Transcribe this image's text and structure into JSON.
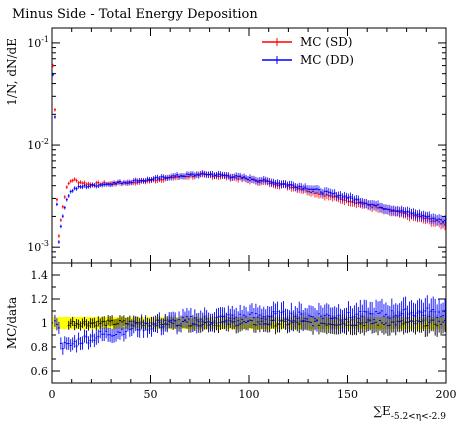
{
  "chart_data": [
    {
      "type": "line",
      "panel": "main",
      "title": "Minus Side - Total Energy Deposition",
      "ylabel": "1/N, dN/dE",
      "yscale": "log",
      "xlim": [
        0,
        200
      ],
      "ylim": [
        0.0007,
        0.14
      ],
      "ytick_labels": [
        "10^{-3}",
        "10^{-2}",
        "10^{-1}"
      ],
      "legend_position": "top-right",
      "series": [
        {
          "name": "MC (SD)",
          "color": "#ff0000",
          "x": [
            1,
            3,
            5,
            7,
            9,
            11,
            13,
            15,
            20,
            25,
            30,
            40,
            50,
            60,
            70,
            80,
            90,
            100,
            110,
            120,
            130,
            140,
            150,
            160,
            170,
            180,
            190,
            199
          ],
          "y": [
            0.06,
            0.0011,
            0.0022,
            0.0036,
            0.0044,
            0.0046,
            0.0044,
            0.0043,
            0.0041,
            0.0042,
            0.0042,
            0.0043,
            0.0045,
            0.0048,
            0.005,
            0.0051,
            0.0049,
            0.0046,
            0.0043,
            0.004,
            0.0036,
            0.0032,
            0.0029,
            0.0026,
            0.0023,
            0.0021,
            0.0019,
            0.0017
          ]
        },
        {
          "name": "MC (DD)",
          "color": "#0000ff",
          "x": [
            1,
            3,
            5,
            7,
            9,
            11,
            13,
            15,
            20,
            25,
            30,
            40,
            50,
            60,
            70,
            80,
            90,
            100,
            110,
            120,
            130,
            140,
            150,
            160,
            170,
            180,
            190,
            199
          ],
          "y": [
            0.05,
            0.001,
            0.0018,
            0.0028,
            0.0034,
            0.0037,
            0.0038,
            0.0039,
            0.004,
            0.0041,
            0.0042,
            0.0044,
            0.0046,
            0.0049,
            0.0051,
            0.0052,
            0.005,
            0.0047,
            0.0044,
            0.0041,
            0.0038,
            0.0034,
            0.0031,
            0.0027,
            0.0024,
            0.0022,
            0.002,
            0.0018
          ]
        }
      ]
    },
    {
      "type": "scatter",
      "panel": "ratio",
      "ylabel": "MC/data",
      "xlabel": "∑E_{-5.2<η<-2.9}",
      "xlim": [
        0,
        200
      ],
      "ylim": [
        0.5,
        1.5
      ],
      "x_ticks": [
        0,
        50,
        100,
        150,
        200
      ],
      "y_ticks": [
        0.6,
        0.8,
        1,
        1.2,
        1.4
      ],
      "band": {
        "color": "#ffff00",
        "lower": 0.95,
        "upper": 1.05
      },
      "series": [
        {
          "name": "MC (SD)",
          "color": "#000000",
          "x": [
            10,
            20,
            30,
            40,
            50,
            60,
            70,
            80,
            90,
            100,
            110,
            120,
            130,
            140,
            150,
            160,
            170,
            180,
            190,
            199
          ],
          "y": [
            1.0,
            1.0,
            1.0,
            1.0,
            1.0,
            1.0,
            1.0,
            1.0,
            1.0,
            1.0,
            1.0,
            1.0,
            1.0,
            1.0,
            1.0,
            1.0,
            1.0,
            1.0,
            1.0,
            1.0
          ]
        },
        {
          "name": "MC (DD)",
          "color": "#0000ff",
          "x": [
            2,
            5,
            8,
            10,
            15,
            20,
            25,
            30,
            35,
            40,
            50,
            60,
            70,
            80,
            90,
            100,
            110,
            120,
            130,
            140,
            150,
            160,
            170,
            180,
            190,
            199
          ],
          "y": [
            1.05,
            0.82,
            0.8,
            0.82,
            0.86,
            0.88,
            0.9,
            0.92,
            0.94,
            0.96,
            0.98,
            1.0,
            1.02,
            1.03,
            1.04,
            1.05,
            1.06,
            1.06,
            1.05,
            1.06,
            1.05,
            1.06,
            1.07,
            1.08,
            1.09,
            1.08
          ]
        }
      ]
    }
  ]
}
